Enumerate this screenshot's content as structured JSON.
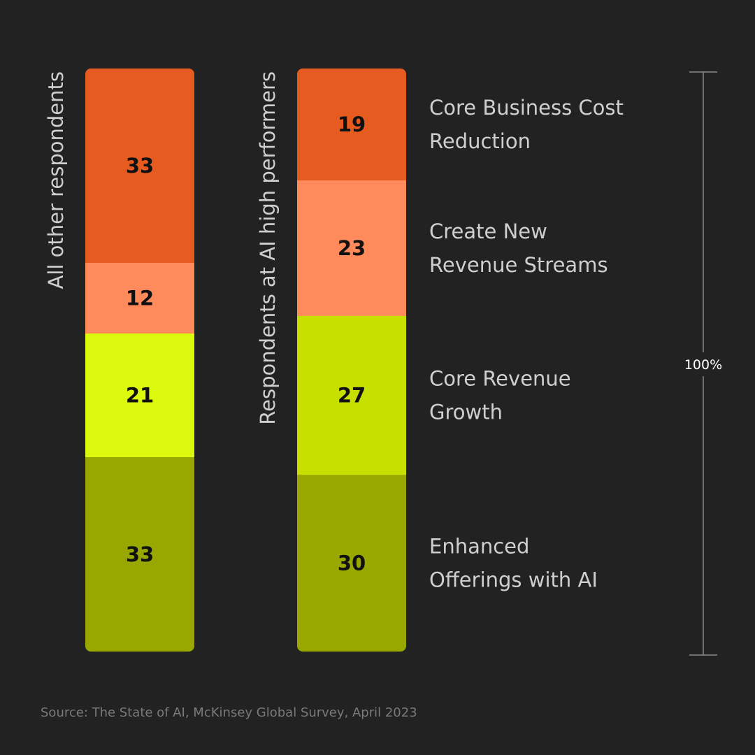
{
  "chart_data": {
    "type": "bar",
    "stacked": true,
    "percent": true,
    "categories": [
      "All other respondents",
      "Respondents at AI high performers"
    ],
    "series": [
      {
        "name": "Core Business Cost Reduction",
        "name_lines": [
          "Core Business Cost",
          "Reduction"
        ],
        "color": "#e55b20",
        "values": [
          33,
          19
        ]
      },
      {
        "name": "Create New Revenue Streams",
        "name_lines": [
          "Create New",
          "Revenue Streams"
        ],
        "color": "#ff8a5c",
        "values": [
          12,
          23
        ]
      },
      {
        "name": "Core Revenue Growth",
        "name_lines": [
          "Core Revenue",
          "Growth"
        ],
        "color_per_bar": [
          "#dcf80c",
          "#c8e000"
        ],
        "values": [
          21,
          27
        ]
      },
      {
        "name": "Enhanced Offerings with AI",
        "name_lines": [
          "Enhanced",
          "Offerings with AI"
        ],
        "color": "#98a800",
        "values": [
          33,
          30
        ]
      }
    ],
    "scale_label": "100%",
    "legend_placement": "right",
    "grid": false
  },
  "source": "Source: The State of AI, McKinsey Global Survey, April 2023"
}
